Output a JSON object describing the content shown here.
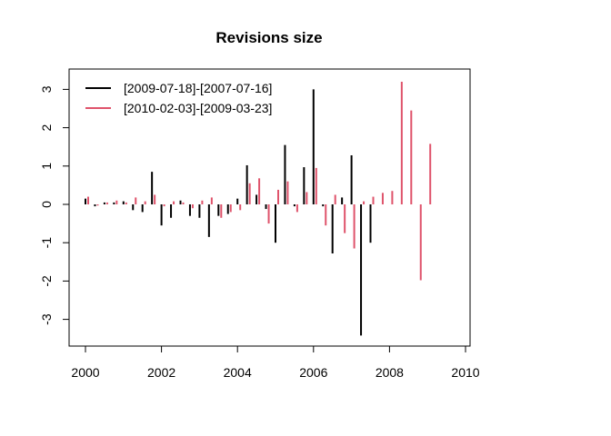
{
  "chart_data": {
    "type": "bar",
    "title": "Revisions size",
    "xlabel": "",
    "ylabel": "",
    "xlim": [
      2000,
      2010
    ],
    "ylim": [
      -3.5,
      3.3
    ],
    "x_ticks": [
      2000,
      2002,
      2004,
      2006,
      2008,
      2010
    ],
    "y_ticks": [
      -3,
      -2,
      -1,
      0,
      1,
      2,
      3
    ],
    "legend_position": "top-left",
    "series": [
      {
        "name": "[2009-07-18]-[2007-07-16]",
        "color": "#000000",
        "x": [
          2000.0,
          2000.25,
          2000.5,
          2000.75,
          2001.0,
          2001.25,
          2001.5,
          2001.75,
          2002.0,
          2002.25,
          2002.5,
          2002.75,
          2003.0,
          2003.25,
          2003.5,
          2003.75,
          2004.0,
          2004.25,
          2004.5,
          2004.75,
          2005.0,
          2005.25,
          2005.5,
          2005.75,
          2006.0,
          2006.25,
          2006.5,
          2006.75,
          2007.0,
          2007.25,
          2007.5
        ],
        "values": [
          0.15,
          -0.05,
          0.05,
          0.05,
          0.08,
          -0.15,
          -0.2,
          0.85,
          -0.55,
          -0.35,
          0.1,
          -0.3,
          -0.35,
          -0.85,
          -0.3,
          -0.25,
          0.15,
          1.02,
          0.25,
          -0.12,
          -1.0,
          1.55,
          -0.05,
          0.97,
          3.0,
          -0.05,
          -1.28,
          0.18,
          1.28,
          -3.42,
          -1.0
        ]
      },
      {
        "name": "[2010-02-03]-[2009-03-23]",
        "color": "#DF536B",
        "x": [
          2000.0,
          2000.25,
          2000.5,
          2000.75,
          2001.0,
          2001.25,
          2001.5,
          2001.75,
          2002.0,
          2002.25,
          2002.5,
          2002.75,
          2003.0,
          2003.25,
          2003.5,
          2003.75,
          2004.0,
          2004.25,
          2004.5,
          2004.75,
          2005.0,
          2005.25,
          2005.5,
          2005.75,
          2006.0,
          2006.25,
          2006.5,
          2006.75,
          2007.0,
          2007.25,
          2007.5,
          2007.75,
          2008.0,
          2008.25,
          2008.5,
          2008.75,
          2009.0
        ],
        "values": [
          0.2,
          -0.03,
          0.05,
          0.1,
          0.05,
          0.18,
          0.08,
          0.25,
          -0.05,
          0.08,
          0.05,
          -0.1,
          0.1,
          0.18,
          -0.35,
          -0.2,
          -0.15,
          0.55,
          0.68,
          -0.5,
          0.38,
          0.6,
          -0.2,
          0.32,
          0.95,
          -0.55,
          0.25,
          -0.75,
          -1.15,
          0.08,
          0.2,
          0.3,
          0.35,
          3.2,
          2.45,
          -1.98,
          1.58
        ]
      }
    ]
  }
}
